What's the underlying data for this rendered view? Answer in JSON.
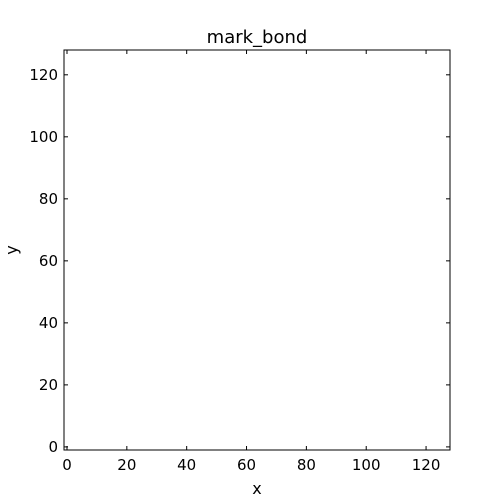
{
  "chart_data": {
    "type": "scatter",
    "title": "mark_bond",
    "xlabel": "x",
    "ylabel": "y",
    "xlim": [
      -1,
      128
    ],
    "ylim": [
      -1,
      128
    ],
    "xticks": [
      0,
      20,
      40,
      60,
      80,
      100,
      120
    ],
    "yticks": [
      0,
      20,
      40,
      60,
      80,
      100,
      120
    ],
    "grid": false,
    "series": []
  }
}
